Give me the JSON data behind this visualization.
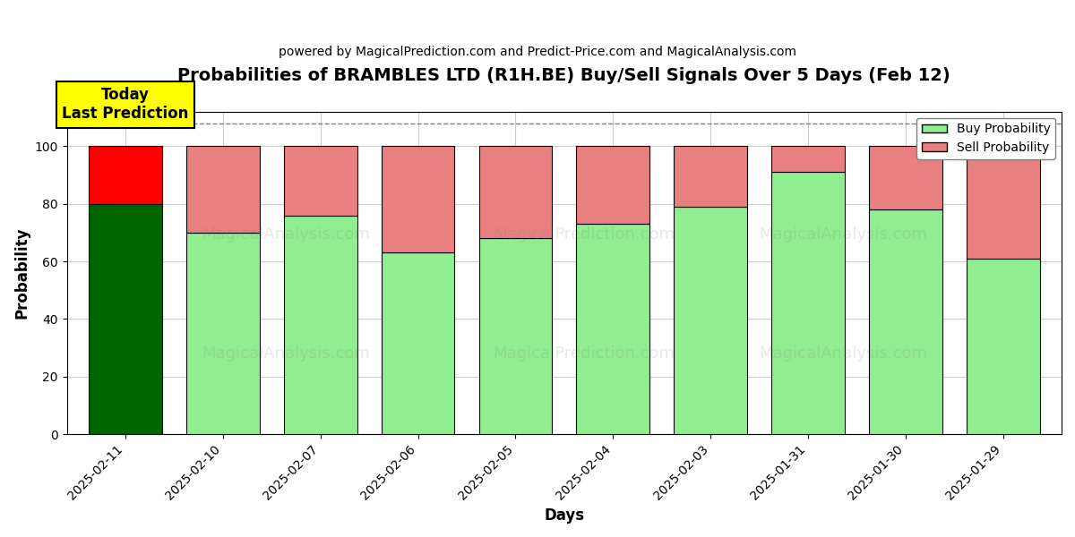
{
  "title": "Probabilities of BRAMBLES LTD (R1H.BE) Buy/Sell Signals Over 5 Days (Feb 12)",
  "subtitle": "powered by MagicalPrediction.com and Predict-Price.com and MagicalAnalysis.com",
  "xlabel": "Days",
  "ylabel": "Probability",
  "dates": [
    "2025-02-11",
    "2025-02-10",
    "2025-02-07",
    "2025-02-06",
    "2025-02-05",
    "2025-02-04",
    "2025-02-03",
    "2025-01-31",
    "2025-01-30",
    "2025-01-29"
  ],
  "buy_probs": [
    80,
    70,
    76,
    63,
    68,
    73,
    79,
    91,
    78,
    61
  ],
  "sell_probs": [
    20,
    30,
    24,
    37,
    32,
    27,
    21,
    9,
    22,
    39
  ],
  "today_buy_color": "#006400",
  "today_sell_color": "#FF0000",
  "buy_color": "#90EE90",
  "sell_color": "#E88080",
  "today_annotation": "Today\nLast Prediction",
  "ylim": [
    0,
    112
  ],
  "yticks": [
    0,
    20,
    40,
    60,
    80,
    100
  ],
  "dashed_line_y": 108,
  "background_color": "#ffffff",
  "grid_color": "#cccccc",
  "legend_buy_label": "Buy Probability",
  "legend_sell_label": "Sell Probability",
  "bar_width": 0.75
}
